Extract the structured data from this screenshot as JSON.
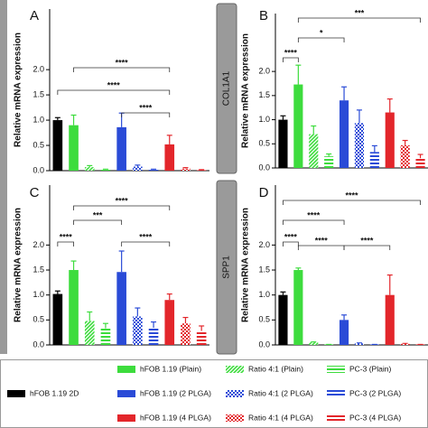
{
  "legend": [
    {
      "name": "hFOB 1.19 2D",
      "color": "#000000",
      "pattern": "solid"
    },
    {
      "name": "hFOB 1.19 (Plain)",
      "color": "#3ddc3d",
      "pattern": "solid"
    },
    {
      "name": "Ratio 4:1 (Plain)",
      "color": "#3ddc3d",
      "pattern": "diagonal"
    },
    {
      "name": "PC-3 (Plain)",
      "color": "#3ddc3d",
      "pattern": "horizontal"
    },
    {
      "name": "hFOB 1.19 (2 PLGA)",
      "color": "#2a4bd7",
      "pattern": "solid"
    },
    {
      "name": "Ratio 4:1 (2 PLGA)",
      "color": "#2a4bd7",
      "pattern": "dots"
    },
    {
      "name": "PC-3 (2 PLGA)",
      "color": "#2a4bd7",
      "pattern": "horizontal"
    },
    {
      "name": "hFOB 1.19 (4 PLGA)",
      "color": "#e3262b",
      "pattern": "solid"
    },
    {
      "name": "Ratio 4:1 (4 PLGA)",
      "color": "#e3262b",
      "pattern": "dots"
    },
    {
      "name": "PC-3 (4 PLGA)",
      "color": "#e3262b",
      "pattern": "horizontal"
    }
  ],
  "chart_data": [
    {
      "type": "bar",
      "panel": "A",
      "y_label": "Relative mRNA expression",
      "ylim": [
        0,
        3.2
      ],
      "yticks": [
        {
          "value": 0,
          "label": "0.0"
        },
        {
          "value": 0.5,
          "label": "0.5"
        },
        {
          "value": 1,
          "label": "1.0"
        },
        {
          "value": 1.5,
          "label": "1.5"
        },
        {
          "value": 2,
          "label": "2.0"
        }
      ],
      "values": [
        1.0,
        0.9,
        0.07,
        0.02,
        0.86,
        0.08,
        0.02,
        0.52,
        0.04,
        0.01
      ],
      "errors": [
        0.05,
        0.2,
        0.03,
        0.01,
        0.28,
        0.03,
        0.01,
        0.18,
        0.02,
        0.01
      ],
      "annotations": [
        "****",
        "****",
        "****"
      ]
    },
    {
      "type": "bar",
      "panel": "B",
      "gene": "COL1A1",
      "y_label": "Relative mRNA expression",
      "ylim": [
        0,
        3.2
      ],
      "yticks": [
        {
          "value": 0,
          "label": "0.0"
        },
        {
          "value": 0.5,
          "label": "0.5"
        },
        {
          "value": 1,
          "label": "1.0"
        },
        {
          "value": 1.5,
          "label": "1.5"
        },
        {
          "value": 2,
          "label": "2.0"
        }
      ],
      "values": [
        1.0,
        1.73,
        0.7,
        0.24,
        1.4,
        0.93,
        0.33,
        1.15,
        0.47,
        0.2
      ],
      "errors": [
        0.08,
        0.4,
        0.17,
        0.05,
        0.28,
        0.27,
        0.13,
        0.28,
        0.1,
        0.08
      ],
      "annotations": [
        "***",
        "*",
        "****"
      ]
    },
    {
      "type": "bar",
      "panel": "C",
      "y_label": "Relative mRNA expression",
      "ylim": [
        0,
        3.2
      ],
      "yticks": [
        {
          "value": 0,
          "label": "0.0"
        },
        {
          "value": 0.5,
          "label": "0.5"
        },
        {
          "value": 1,
          "label": "1.0"
        },
        {
          "value": 1.5,
          "label": "1.5"
        },
        {
          "value": 2,
          "label": "2.0"
        }
      ],
      "values": [
        1.02,
        1.5,
        0.48,
        0.33,
        1.46,
        0.57,
        0.34,
        0.9,
        0.43,
        0.28
      ],
      "errors": [
        0.06,
        0.18,
        0.18,
        0.1,
        0.42,
        0.17,
        0.12,
        0.12,
        0.12,
        0.1
      ],
      "annotations": [
        "****",
        "***",
        "****",
        "****"
      ]
    },
    {
      "type": "bar",
      "panel": "D",
      "gene": "SPP1",
      "y_label": "Relative mRNA expression",
      "ylim": [
        0,
        3.2
      ],
      "yticks": [
        {
          "value": 0,
          "label": "0.0"
        },
        {
          "value": 0.5,
          "label": "0.5"
        },
        {
          "value": 1,
          "label": "1.0"
        },
        {
          "value": 1.5,
          "label": "1.5"
        },
        {
          "value": 2,
          "label": "2.0"
        }
      ],
      "values": [
        1.0,
        1.5,
        0.05,
        0.01,
        0.5,
        0.03,
        0.01,
        1.0,
        0.02,
        0.01
      ],
      "errors": [
        0.06,
        0.04,
        0.01,
        0,
        0.1,
        0.01,
        0,
        0.4,
        0.01,
        0
      ],
      "annotations": [
        "****",
        "****",
        "****",
        "****",
        "****"
      ]
    }
  ]
}
